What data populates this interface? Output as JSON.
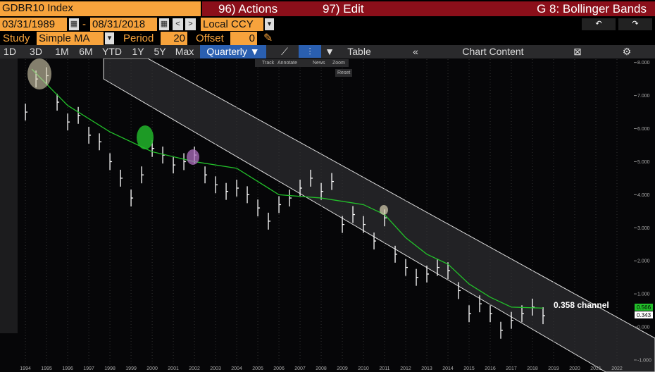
{
  "header": {
    "ticker": "GDBR10 Index",
    "actions": "96) Actions",
    "edit": "97) Edit",
    "chart_name": "G 8: Bollinger Bands"
  },
  "controls": {
    "start_date": "03/31/1989",
    "dash": "-",
    "end_date": "08/31/2018",
    "currency": "Local CCY",
    "study_label": "Study",
    "study": "Simple MA",
    "period_label": "Period",
    "period": "20",
    "offset_label": "Offset",
    "offset": "0"
  },
  "toolbar": {
    "ranges": [
      "1D",
      "3D",
      "1M",
      "6M",
      "YTD",
      "1Y",
      "5Y",
      "Max"
    ],
    "frequency": "Quarterly",
    "table": "Table",
    "chart_content": "Chart Content"
  },
  "chart_tools": [
    "Track",
    "Annotate",
    "News",
    "Zoom",
    "Reset"
  ],
  "chart_data": {
    "type": "line",
    "annotation": "0.358 channel",
    "last_labels": [
      "0.566",
      "0.343"
    ],
    "xlim": [
      1993.13,
      2022.8
    ],
    "ylim": [
      -1.15,
      8.1
    ],
    "grid": true,
    "xticks": [
      1994,
      1995,
      1996,
      1997,
      1998,
      1999,
      2000,
      2001,
      2002,
      2003,
      2004,
      2005,
      2006,
      2007,
      2008,
      2009,
      2010,
      2011,
      2012,
      2013,
      2014,
      2015,
      2016,
      2017,
      2018,
      2019,
      2020,
      2021,
      2022
    ],
    "yticks": [
      {
        "value": 8,
        "label": "8.000"
      },
      {
        "value": 7,
        "label": "7.000"
      },
      {
        "value": 6,
        "label": "6.000"
      },
      {
        "value": 5,
        "label": "5.000"
      },
      {
        "value": 4,
        "label": "4.000"
      },
      {
        "value": 3,
        "label": "3.000"
      },
      {
        "value": 2,
        "label": "2.000"
      },
      {
        "value": 1,
        "label": "1.000"
      },
      {
        "value": 0,
        "label": "0.000"
      },
      {
        "value": -1,
        "label": "-1.000"
      }
    ],
    "series": [
      {
        "mark": "bar",
        "color": "#ffffff",
        "x": [
          1994.0,
          1994.5,
          1995.0,
          1995.5,
          1996.0,
          1996.5,
          1997.0,
          1997.5,
          1998.0,
          1998.5,
          1999.0,
          1999.5,
          2000.0,
          2000.5,
          2001.0,
          2001.5,
          2002.0,
          2002.5,
          2003.0,
          2003.5,
          2004.0,
          2004.5,
          2005.0,
          2005.5,
          2006.0,
          2006.5,
          2007.0,
          2007.5,
          2008.0,
          2008.5,
          2009.0,
          2009.5,
          2010.0,
          2010.5,
          2011.0,
          2011.5,
          2012.0,
          2012.5,
          2013.0,
          2013.5,
          2014.0,
          2014.5,
          2015.0,
          2015.5,
          2016.0,
          2016.5,
          2017.0,
          2017.5,
          2018.0,
          2018.5
        ],
        "values": [
          6.5,
          7.5,
          7.6,
          6.8,
          6.2,
          6.4,
          5.8,
          5.6,
          5.0,
          4.5,
          3.9,
          4.6,
          5.4,
          5.2,
          4.9,
          5.0,
          5.2,
          4.6,
          4.3,
          4.1,
          4.2,
          4.0,
          3.6,
          3.2,
          3.7,
          3.9,
          4.2,
          4.5,
          4.1,
          4.4,
          3.1,
          3.4,
          3.1,
          2.6,
          3.3,
          2.2,
          1.8,
          1.5,
          1.6,
          1.8,
          1.7,
          1.1,
          0.4,
          0.7,
          0.4,
          -0.1,
          0.2,
          0.4,
          0.6,
          0.34
        ]
      },
      {
        "mark": "line",
        "color": "#22c02a",
        "x": [
          1994.3,
          1996,
          1998,
          2000,
          2002,
          2004,
          2006,
          2008,
          2010,
          2011,
          2012,
          2013,
          2014,
          2015,
          2016,
          2017,
          2018.5
        ],
        "values": [
          7.8,
          6.7,
          5.9,
          5.3,
          5.0,
          4.8,
          4.0,
          3.9,
          3.7,
          3.4,
          2.7,
          2.2,
          1.9,
          1.3,
          0.9,
          0.6,
          0.57
        ]
      }
    ]
  }
}
